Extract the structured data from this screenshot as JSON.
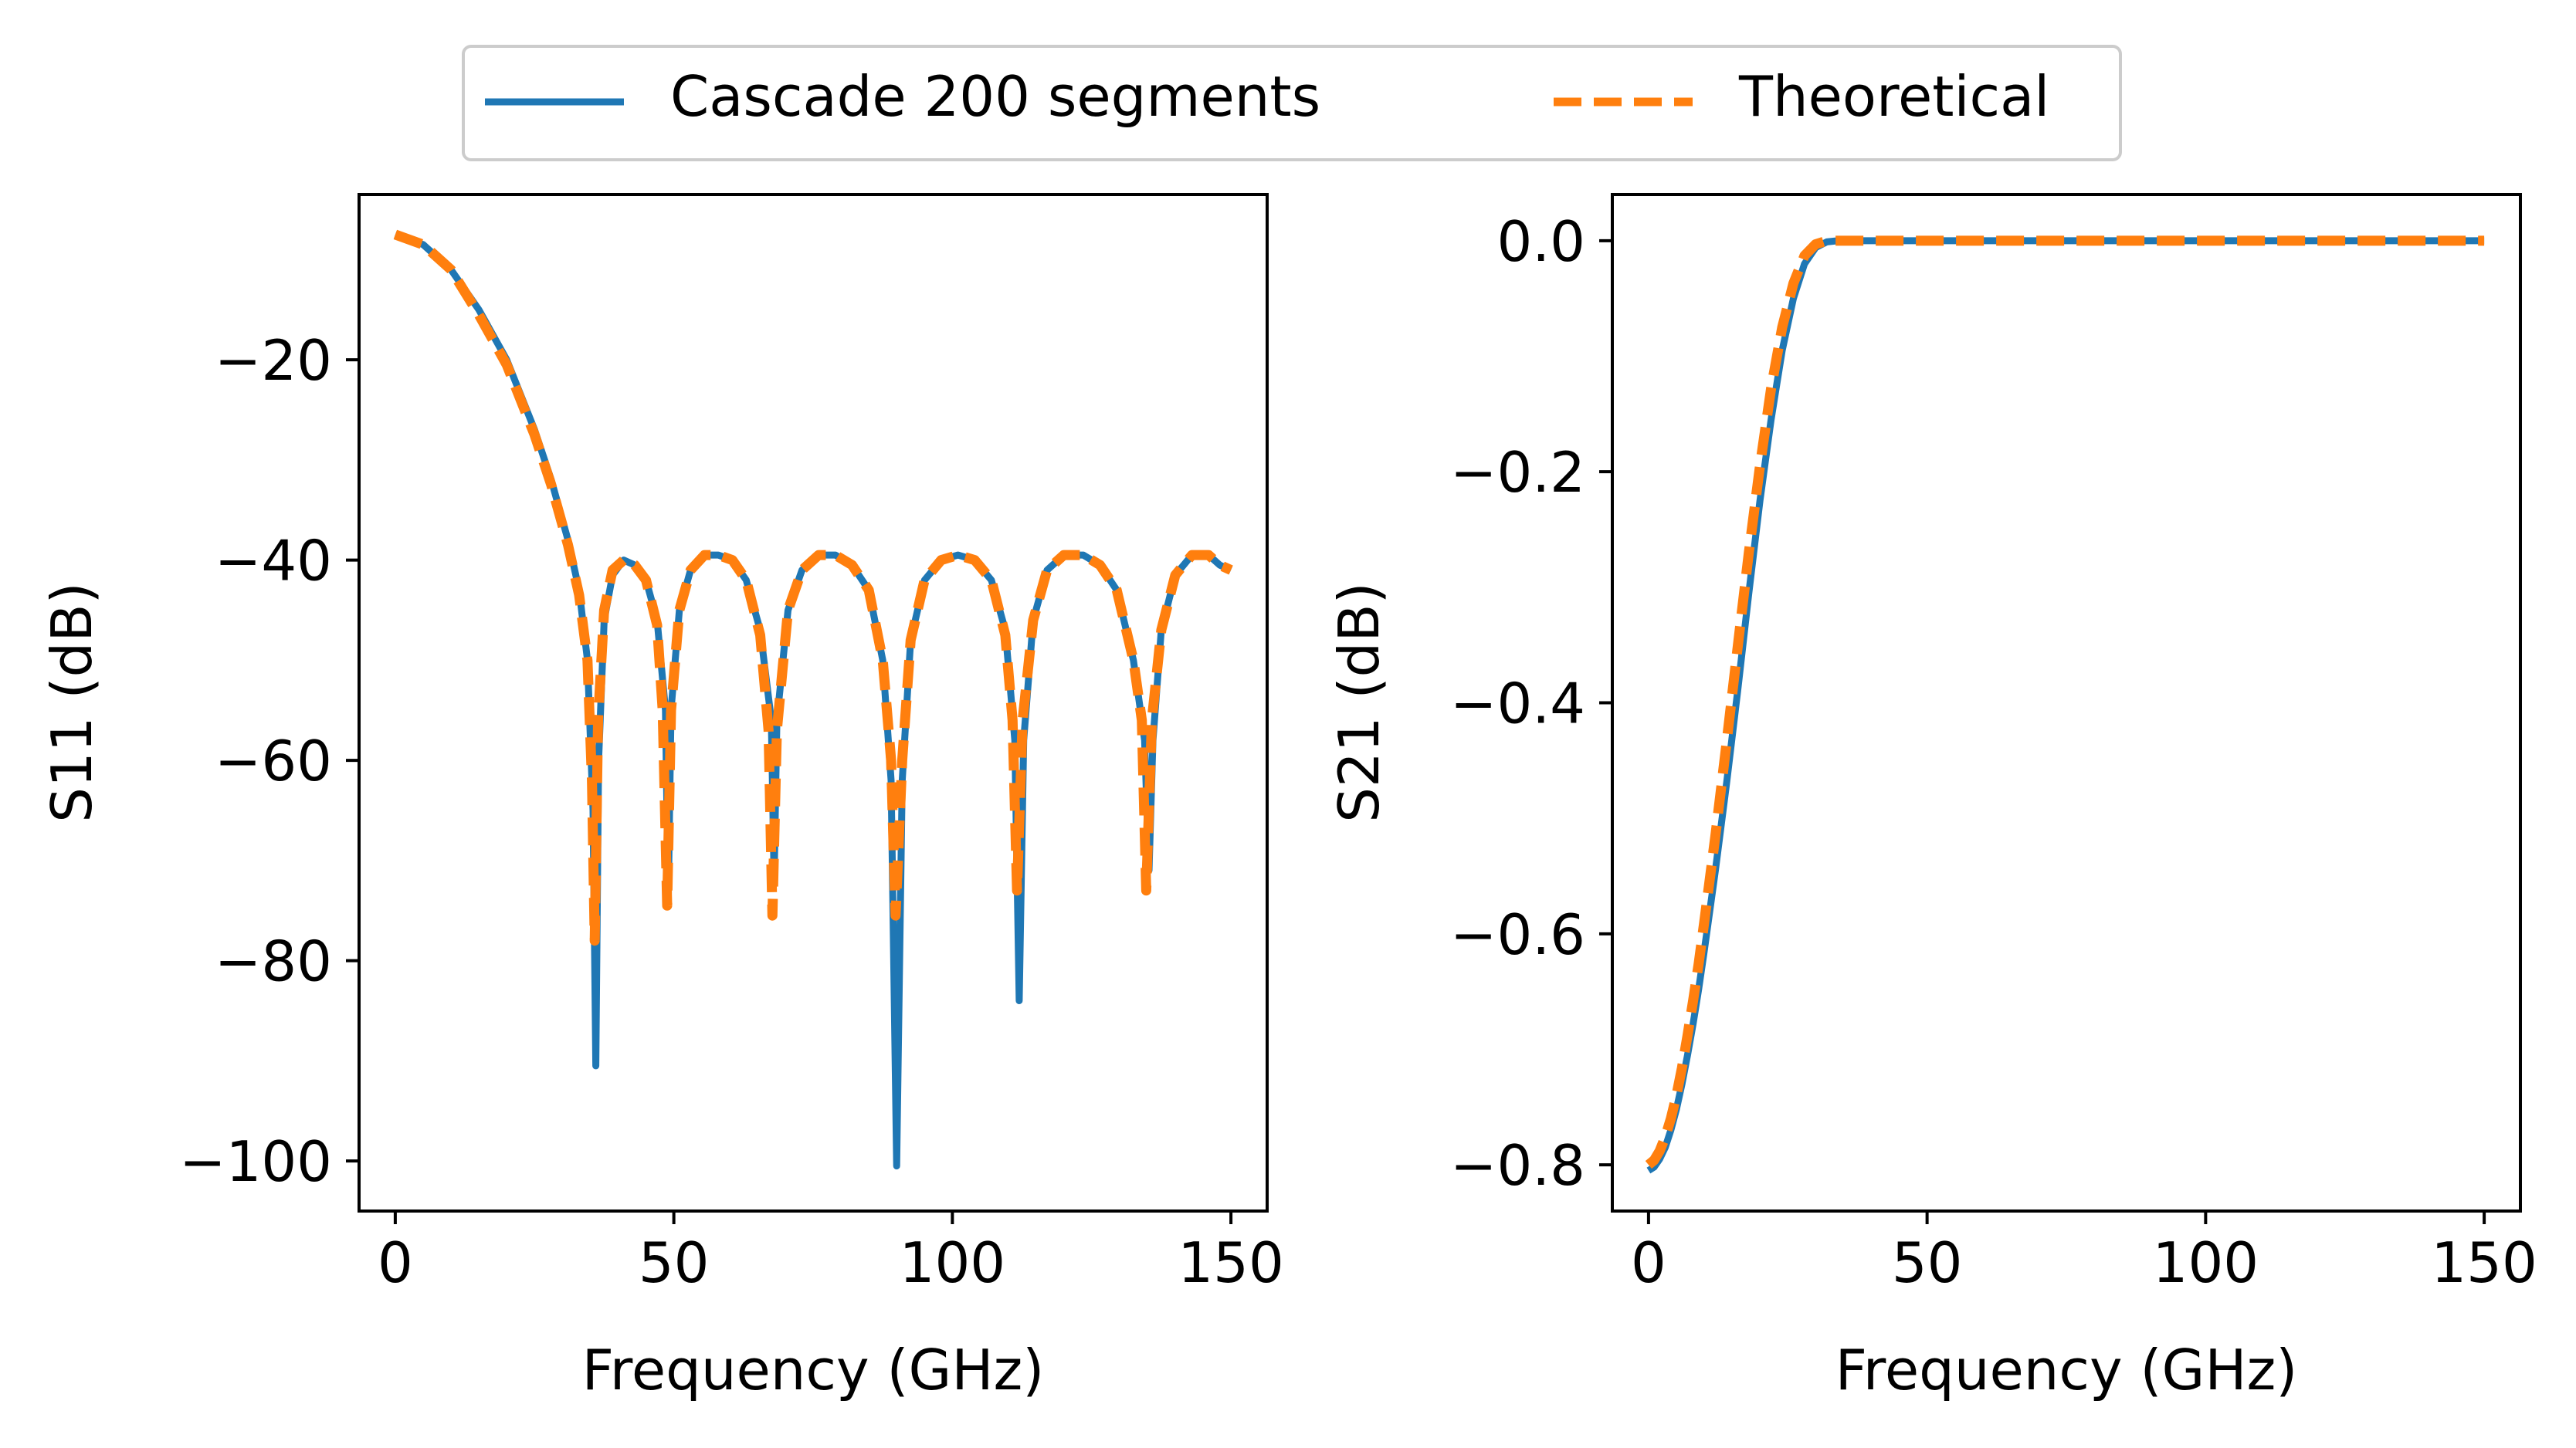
{
  "legend": {
    "placement": "top-center",
    "entries": [
      {
        "label": "Cascade 200 segments",
        "color": "#1f77b4",
        "style": "solid"
      },
      {
        "label": "Theoretical",
        "color": "#ff7f0e",
        "style": "dashed"
      }
    ]
  },
  "chart_data": [
    {
      "type": "line",
      "xlabel": "Frequency (GHz)",
      "ylabel": "S11 (dB)",
      "xlim": [
        -6.5,
        156.5
      ],
      "ylim": [
        -105,
        -3.5
      ],
      "xticks": [
        0,
        50,
        100,
        150
      ],
      "yticks": [
        -20,
        -40,
        -60,
        -80,
        -100
      ],
      "xtick_labels": [
        "0",
        "50",
        "100",
        "150"
      ],
      "ytick_labels": [
        "−20",
        "−40",
        "−60",
        "−80",
        "−100"
      ],
      "grid": false,
      "series": [
        {
          "name": "Cascade 200 segments",
          "color": "#1f77b4",
          "style": "solid",
          "x": [
            0,
            5,
            10,
            15,
            20,
            25,
            28,
            31,
            33,
            34.5,
            35.5,
            36,
            36.5,
            37.5,
            39,
            41,
            43,
            45,
            47,
            48.5,
            49,
            49.5,
            51,
            53,
            55.5,
            58,
            60.5,
            63,
            65.5,
            67.5,
            68,
            68.5,
            70.5,
            73,
            76,
            79,
            82,
            85,
            87.5,
            89,
            90,
            91,
            92.5,
            95,
            98,
            101,
            104,
            107,
            109.5,
            111.2,
            112,
            112.8,
            114.5,
            117,
            120,
            123.5,
            126.5,
            129.5,
            132.5,
            134.5,
            135.3,
            136,
            137.5,
            140,
            143,
            146,
            148,
            150
          ],
          "y": [
            -7.5,
            -8.5,
            -11,
            -15,
            -20,
            -27,
            -32,
            -38,
            -43,
            -50,
            -65,
            -90.5,
            -60,
            -46,
            -41.5,
            -40,
            -40.5,
            -42,
            -46,
            -55,
            -74,
            -55,
            -45,
            -41,
            -39.5,
            -39.5,
            -40,
            -42,
            -47,
            -56,
            -72,
            -56,
            -45,
            -41,
            -39.5,
            -39.5,
            -40.5,
            -43,
            -50,
            -62,
            -100.5,
            -62,
            -48,
            -42,
            -40,
            -39.5,
            -40,
            -42,
            -47,
            -58,
            -84,
            -58,
            -46,
            -41,
            -39.5,
            -39.5,
            -40.5,
            -43,
            -50,
            -58,
            -71,
            -58,
            -47,
            -41.5,
            -39.5,
            -39.5,
            -40.5,
            -41
          ]
        },
        {
          "name": "Theoretical",
          "color": "#ff7f0e",
          "style": "dashed",
          "x": [
            0,
            5,
            10,
            15,
            20,
            25,
            28,
            31,
            33,
            34.5,
            35.3,
            35.8,
            36.4,
            37.5,
            39,
            41,
            43,
            45,
            47,
            48,
            48.8,
            49.5,
            51,
            53,
            55.5,
            58,
            60.5,
            63,
            65.5,
            67,
            67.7,
            68.5,
            70.5,
            73,
            76,
            79,
            82,
            85,
            87.5,
            89,
            89.8,
            91,
            92.5,
            95,
            98,
            101,
            104,
            107,
            109.5,
            110.8,
            111.6,
            112.6,
            114.5,
            117,
            120,
            123.5,
            126.5,
            129.5,
            132.5,
            134,
            134.8,
            135.8,
            137.5,
            140,
            143,
            146,
            148,
            150
          ],
          "y": [
            -7.5,
            -8.5,
            -11,
            -15.5,
            -20.5,
            -27.5,
            -32.5,
            -38.5,
            -43.5,
            -50,
            -62,
            -78,
            -56,
            -45,
            -41,
            -40,
            -40.5,
            -42,
            -46.5,
            -55,
            -74.5,
            -55,
            -45,
            -41,
            -39.5,
            -39.5,
            -40,
            -42,
            -47.5,
            -57,
            -75.5,
            -57,
            -45,
            -41,
            -39.5,
            -39.5,
            -40.5,
            -43,
            -50,
            -60,
            -75.5,
            -60,
            -48,
            -42,
            -40,
            -39.5,
            -40,
            -42,
            -47.5,
            -56,
            -73,
            -56,
            -46,
            -41,
            -39.5,
            -39.5,
            -40.5,
            -43,
            -50,
            -56,
            -73,
            -56,
            -47,
            -41.5,
            -39.5,
            -39.5,
            -40.5,
            -41
          ]
        }
      ]
    },
    {
      "type": "line",
      "xlabel": "Frequency (GHz)",
      "ylabel": "S21 (dB)",
      "xlim": [
        -6.5,
        156.5
      ],
      "ylim": [
        -0.84,
        0.04
      ],
      "xticks": [
        0,
        50,
        100,
        150
      ],
      "yticks": [
        0.0,
        -0.2,
        -0.4,
        -0.6,
        -0.8
      ],
      "xtick_labels": [
        "0",
        "50",
        "100",
        "150"
      ],
      "ytick_labels": [
        "0.0",
        "−0.2",
        "−0.4",
        "−0.6",
        "−0.8"
      ],
      "grid": false,
      "series": [
        {
          "name": "Cascade 200 segments",
          "color": "#1f77b4",
          "style": "solid",
          "x": [
            0,
            1,
            2,
            3,
            4,
            5,
            6,
            7,
            8,
            9,
            10,
            12,
            14,
            16,
            18,
            20,
            22,
            24,
            26,
            28,
            30,
            32,
            34,
            36,
            40,
            50,
            75,
            100,
            125,
            150
          ],
          "y": [
            -0.805,
            -0.802,
            -0.795,
            -0.785,
            -0.77,
            -0.752,
            -0.73,
            -0.705,
            -0.678,
            -0.648,
            -0.615,
            -0.545,
            -0.47,
            -0.39,
            -0.305,
            -0.225,
            -0.155,
            -0.095,
            -0.05,
            -0.02,
            -0.006,
            -0.001,
            0,
            0,
            0,
            0,
            0,
            0,
            0,
            0
          ]
        },
        {
          "name": "Theoretical",
          "color": "#ff7f0e",
          "style": "dashed",
          "x": [
            0,
            1,
            2,
            3,
            4,
            5,
            6,
            7,
            8,
            9,
            10,
            12,
            14,
            16,
            18,
            20,
            22,
            24,
            26,
            28,
            30,
            32,
            34,
            36,
            40,
            50,
            75,
            100,
            125,
            150
          ],
          "y": [
            -0.8,
            -0.796,
            -0.788,
            -0.776,
            -0.76,
            -0.74,
            -0.716,
            -0.688,
            -0.658,
            -0.626,
            -0.59,
            -0.515,
            -0.435,
            -0.352,
            -0.27,
            -0.195,
            -0.128,
            -0.075,
            -0.037,
            -0.013,
            -0.003,
            0,
            0,
            0,
            0,
            0,
            0,
            0,
            0,
            0
          ]
        }
      ]
    }
  ]
}
